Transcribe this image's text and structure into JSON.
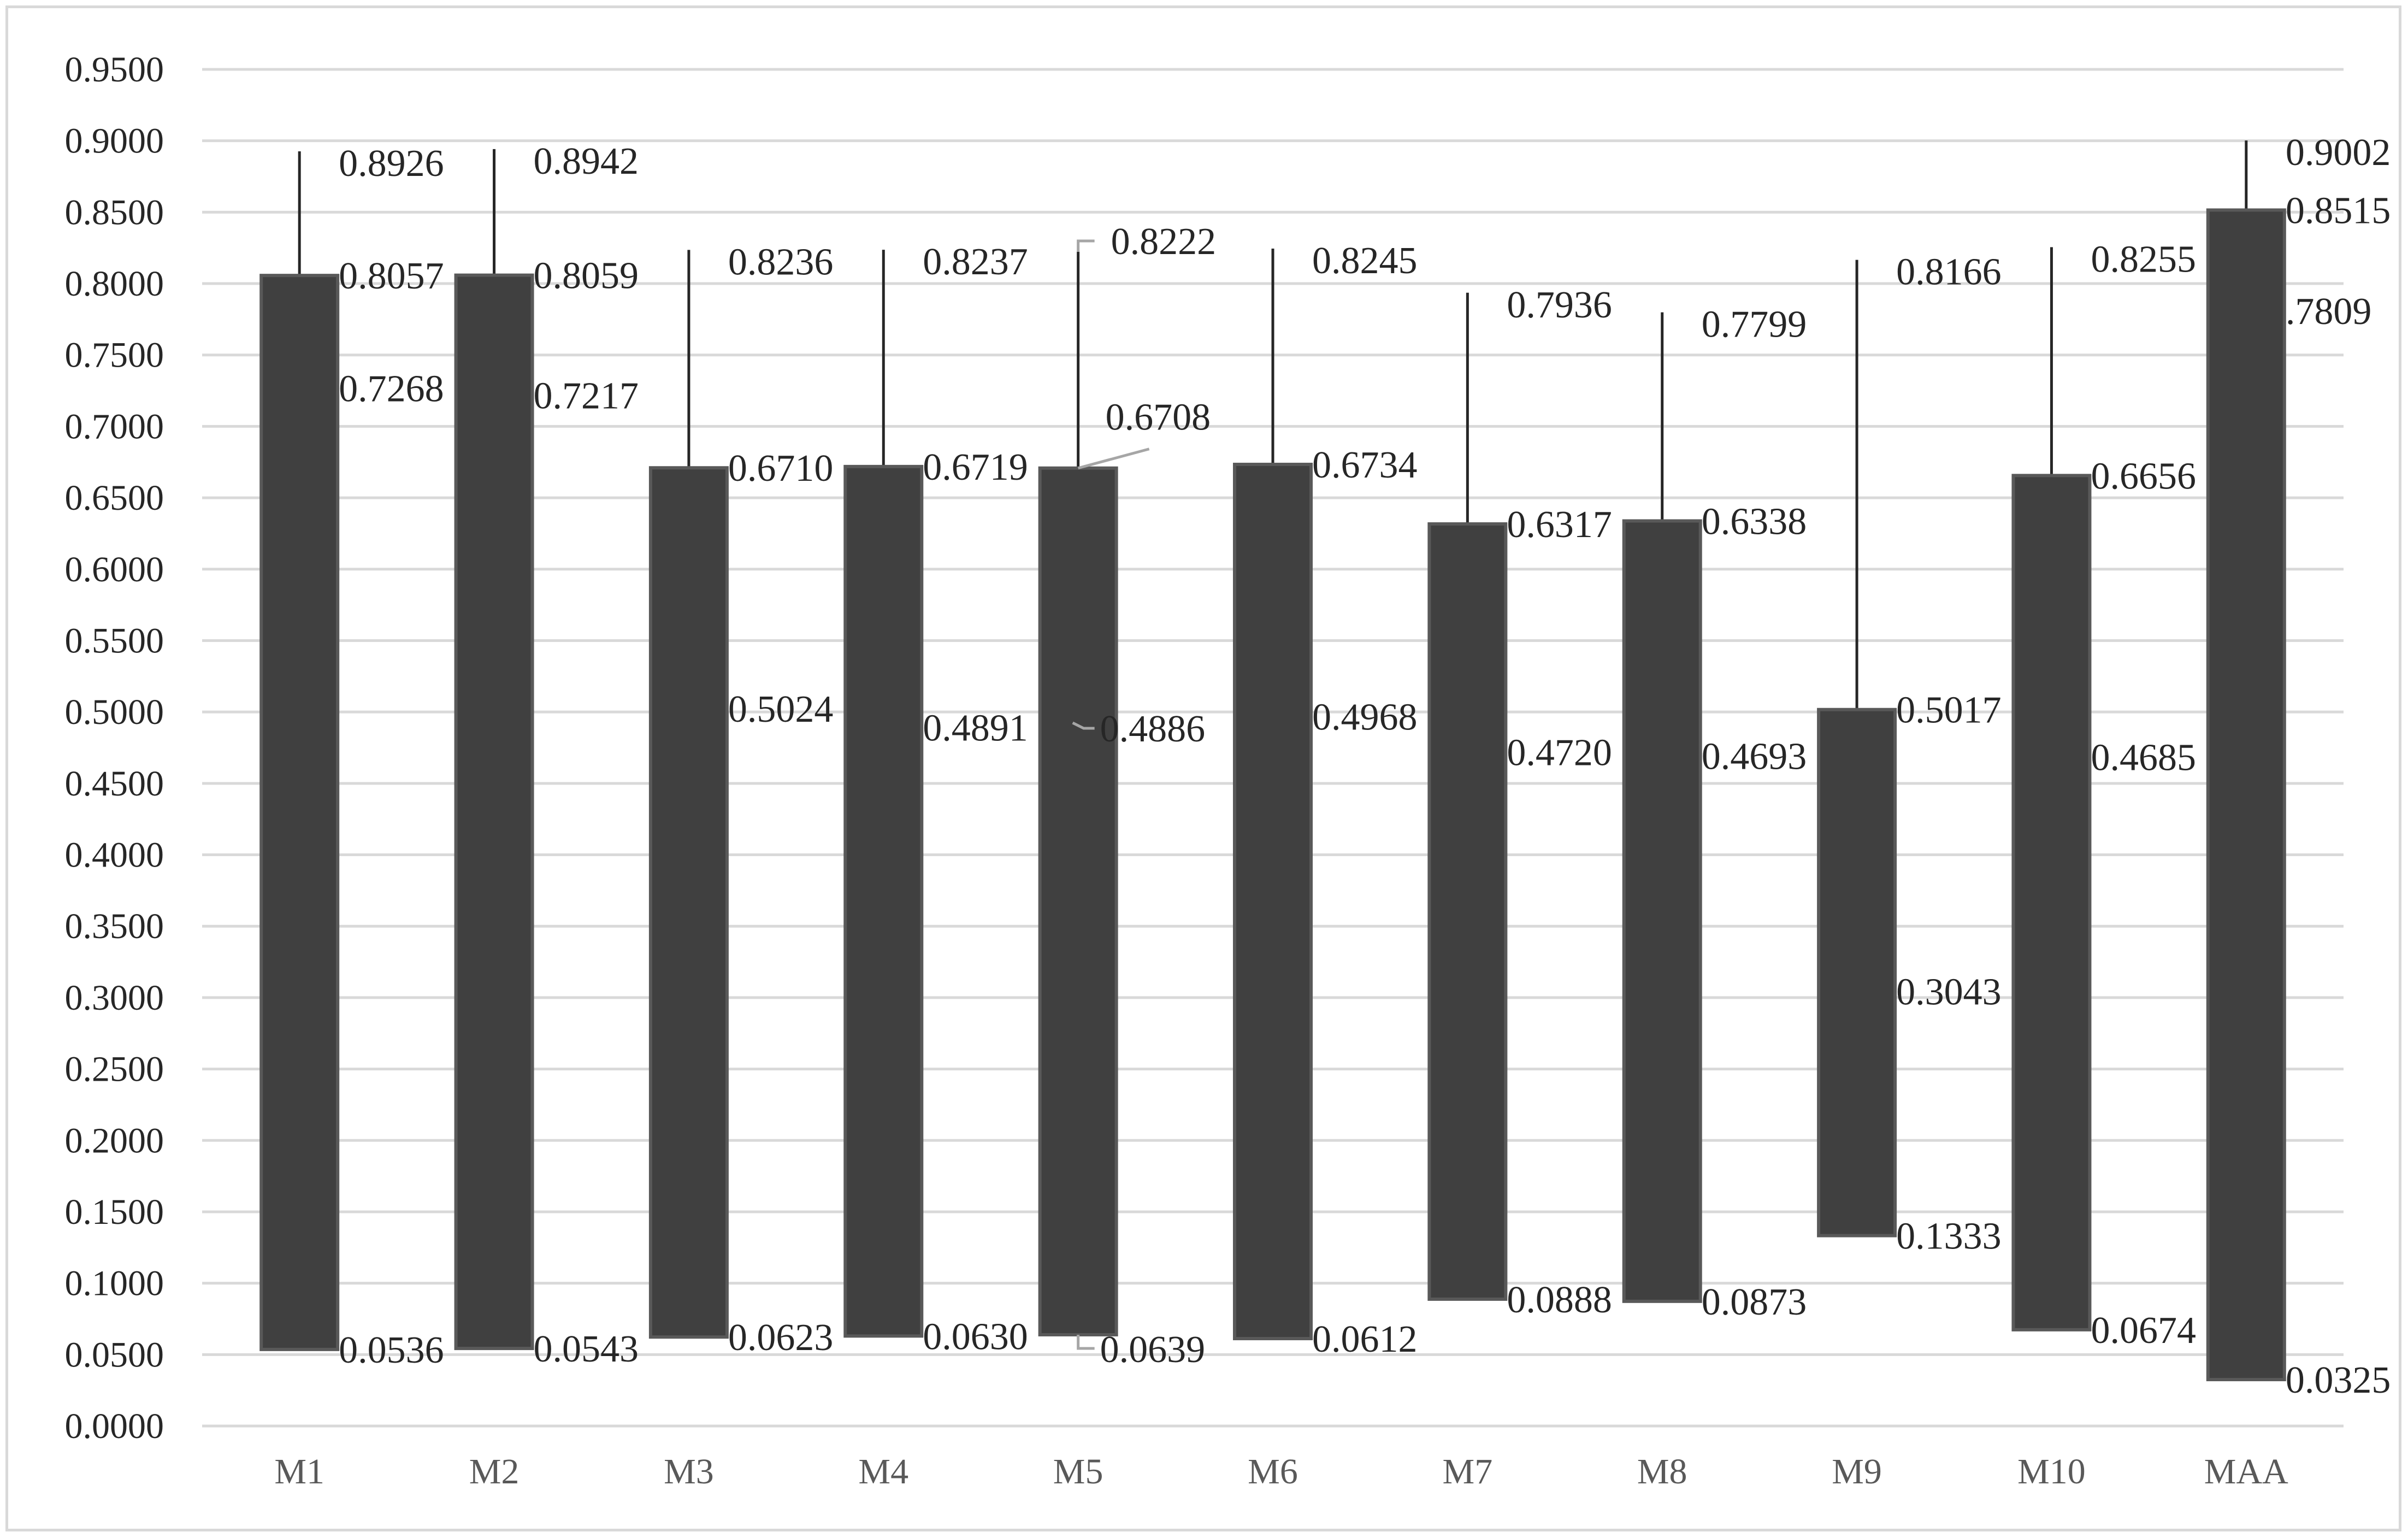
{
  "chart_data": {
    "type": "candlestick",
    "title": "",
    "xlabel": "",
    "ylabel": "",
    "ylim": [
      0,
      0.95
    ],
    "yticks": [
      "0.0000",
      "0.0500",
      "0.1000",
      "0.1500",
      "0.2000",
      "0.2500",
      "0.3000",
      "0.3500",
      "0.4000",
      "0.4500",
      "0.5000",
      "0.5500",
      "0.6000",
      "0.6500",
      "0.7000",
      "0.7500",
      "0.8000",
      "0.8500",
      "0.9000",
      "0.9500"
    ],
    "grid": true,
    "legend": "none",
    "categories": [
      "M1",
      "M2",
      "M3",
      "M4",
      "M5",
      "M6",
      "M7",
      "M8",
      "M9",
      "M10",
      "MAA"
    ],
    "series": [
      {
        "category": "M1",
        "high": 0.8926,
        "box_top": 0.8057,
        "mid": 0.7268,
        "box_bottom": 0.0536,
        "labels": [
          "0.8926",
          "0.8057",
          "0.7268",
          "0.0536"
        ]
      },
      {
        "category": "M2",
        "high": 0.8942,
        "box_top": 0.8059,
        "mid": 0.7217,
        "box_bottom": 0.0543,
        "labels": [
          "0.8942",
          "0.8059",
          "0.7217",
          "0.0543"
        ]
      },
      {
        "category": "M3",
        "high": 0.8236,
        "box_top": 0.671,
        "mid": 0.5024,
        "box_bottom": 0.0623,
        "labels": [
          "0.8236",
          "0.6710",
          "0.5024",
          "0.0623"
        ]
      },
      {
        "category": "M4",
        "high": 0.8237,
        "box_top": 0.6719,
        "mid": 0.4891,
        "box_bottom": 0.063,
        "labels": [
          "0.8237",
          "0.6719",
          "0.4891",
          "0.0630"
        ]
      },
      {
        "category": "M5",
        "high": 0.8222,
        "box_top": 0.6708,
        "mid": 0.4886,
        "box_bottom": 0.0639,
        "labels": [
          "0.8222",
          "0.6708",
          "0.4886",
          "0.0639"
        ]
      },
      {
        "category": "M6",
        "high": 0.8245,
        "box_top": 0.6734,
        "mid": 0.4968,
        "box_bottom": 0.0612,
        "labels": [
          "0.8245",
          "0.6734",
          "0.4968",
          "0.0612"
        ]
      },
      {
        "category": "M7",
        "high": 0.7936,
        "box_top": 0.6317,
        "mid": 0.472,
        "box_bottom": 0.0888,
        "labels": [
          "0.7936",
          "0.6317",
          "0.4720",
          "0.0888"
        ]
      },
      {
        "category": "M8",
        "high": 0.7799,
        "box_top": 0.6338,
        "mid": 0.4693,
        "box_bottom": 0.0873,
        "labels": [
          "0.7799",
          "0.6338",
          "0.4693",
          "0.0873"
        ]
      },
      {
        "category": "M9",
        "high": 0.8166,
        "box_top": 0.5017,
        "mid": 0.3043,
        "box_bottom": 0.1333,
        "labels": [
          "0.8166",
          "0.5017",
          "0.3043",
          "0.1333"
        ]
      },
      {
        "category": "M10",
        "high": 0.8255,
        "box_top": 0.6656,
        "mid": 0.4685,
        "box_bottom": 0.0674,
        "labels": [
          "0.8255",
          "0.6656",
          "0.4685",
          "0.0674"
        ]
      },
      {
        "category": "MAA",
        "high": 0.9002,
        "box_top": 0.8515,
        "mid": 0.7809,
        "box_bottom": 0.0325,
        "labels": [
          "0.9002",
          "0.8515",
          ".7809",
          "0.0325"
        ]
      }
    ],
    "colors": {
      "box_fill": "#404040",
      "box_stroke": "#595959",
      "whisker": "#262626",
      "grid": "#d9d9d9",
      "leader": "#a6a6a6"
    }
  }
}
